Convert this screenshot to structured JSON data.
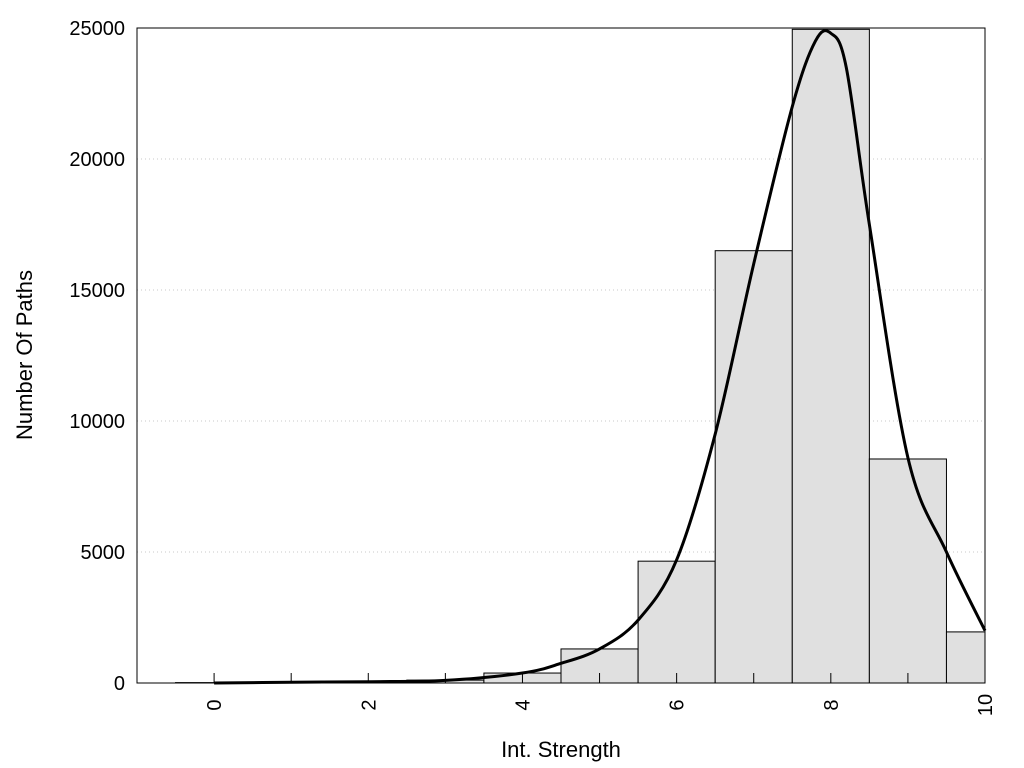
{
  "chart_data": {
    "type": "bar",
    "title": "",
    "xlabel": "Int. Strength",
    "ylabel": "Number Of Paths",
    "xlim": [
      -1,
      10
    ],
    "ylim": [
      0,
      25000
    ],
    "x_ticks": [
      "0",
      "2",
      "4",
      "6",
      "8",
      "10"
    ],
    "y_ticks": [
      "0",
      "5000",
      "10000",
      "15000",
      "20000",
      "25000"
    ],
    "grid": "horizontal-dotted",
    "bar_width": 1,
    "bins": [
      {
        "center": 0,
        "value": 15
      },
      {
        "center": 1,
        "value": 30
      },
      {
        "center": 2,
        "value": 40
      },
      {
        "center": 3,
        "value": 110
      },
      {
        "center": 4,
        "value": 380
      },
      {
        "center": 5,
        "value": 1300
      },
      {
        "center": 6,
        "value": 4650
      },
      {
        "center": 7,
        "value": 16500
      },
      {
        "center": 8,
        "value": 24950
      },
      {
        "center": 9,
        "value": 8550
      },
      {
        "center": 10,
        "value": 1950
      }
    ],
    "curve": {
      "x": [
        0,
        1,
        2,
        3,
        4,
        4.5,
        5,
        5.5,
        6,
        6.5,
        7,
        7.5,
        7.8,
        8,
        8.2,
        8.5,
        9,
        9.5,
        10
      ],
      "y": [
        0,
        30,
        50,
        100,
        380,
        750,
        1300,
        2400,
        4700,
        9500,
        16000,
        22000,
        24500,
        24800,
        23500,
        17500,
        8600,
        5000,
        2000
      ]
    },
    "colors": {
      "bar_fill": "#e0e0e0",
      "bar_stroke": "#000000",
      "curve": "#000000",
      "grid": "#c8c8c8"
    }
  }
}
